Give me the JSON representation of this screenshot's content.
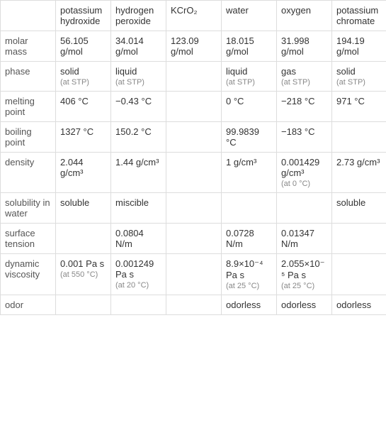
{
  "columns": [
    "",
    "potassium hydroxide",
    "hydrogen peroxide",
    "KCrO₂",
    "water",
    "oxygen",
    "potassium chromate"
  ],
  "rows": [
    {
      "label": "molar mass",
      "cells": [
        {
          "main": "56.105 g/mol"
        },
        {
          "main": "34.014 g/mol"
        },
        {
          "main": "123.09 g/mol"
        },
        {
          "main": "18.015 g/mol"
        },
        {
          "main": "31.998 g/mol"
        },
        {
          "main": "194.19 g/mol"
        }
      ]
    },
    {
      "label": "phase",
      "cells": [
        {
          "main": "solid",
          "note": "(at STP)"
        },
        {
          "main": "liquid",
          "note": "(at STP)"
        },
        {
          "main": ""
        },
        {
          "main": "liquid",
          "note": "(at STP)"
        },
        {
          "main": "gas",
          "note": "(at STP)"
        },
        {
          "main": "solid",
          "note": "(at STP)"
        }
      ]
    },
    {
      "label": "melting point",
      "cells": [
        {
          "main": "406 °C"
        },
        {
          "main": "−0.43 °C"
        },
        {
          "main": ""
        },
        {
          "main": "0 °C"
        },
        {
          "main": "−218 °C"
        },
        {
          "main": "971 °C"
        }
      ]
    },
    {
      "label": "boiling point",
      "cells": [
        {
          "main": "1327 °C"
        },
        {
          "main": "150.2 °C"
        },
        {
          "main": ""
        },
        {
          "main": "99.9839 °C"
        },
        {
          "main": "−183 °C"
        },
        {
          "main": ""
        }
      ]
    },
    {
      "label": "density",
      "cells": [
        {
          "main": "2.044 g/cm³"
        },
        {
          "main": "1.44 g/cm³"
        },
        {
          "main": ""
        },
        {
          "main": "1 g/cm³"
        },
        {
          "main": "0.001429 g/cm³",
          "note": "(at 0 °C)"
        },
        {
          "main": "2.73 g/cm³"
        }
      ]
    },
    {
      "label": "solubility in water",
      "cells": [
        {
          "main": "soluble"
        },
        {
          "main": "miscible"
        },
        {
          "main": ""
        },
        {
          "main": ""
        },
        {
          "main": ""
        },
        {
          "main": "soluble"
        }
      ]
    },
    {
      "label": "surface tension",
      "cells": [
        {
          "main": ""
        },
        {
          "main": "0.0804 N/m"
        },
        {
          "main": ""
        },
        {
          "main": "0.0728 N/m"
        },
        {
          "main": "0.01347 N/m"
        },
        {
          "main": ""
        }
      ]
    },
    {
      "label": "dynamic viscosity",
      "cells": [
        {
          "main": "0.001 Pa s",
          "note": "(at 550 °C)"
        },
        {
          "main": "0.001249 Pa s",
          "note": "(at 20 °C)"
        },
        {
          "main": ""
        },
        {
          "main": "8.9×10⁻⁴ Pa s",
          "note": "(at 25 °C)"
        },
        {
          "main": "2.055×10⁻⁵ Pa s",
          "note": "(at 25 °C)"
        },
        {
          "main": ""
        }
      ]
    },
    {
      "label": "odor",
      "cells": [
        {
          "main": ""
        },
        {
          "main": ""
        },
        {
          "main": ""
        },
        {
          "main": "odorless"
        },
        {
          "main": "odorless"
        },
        {
          "main": "odorless"
        }
      ]
    }
  ],
  "styling": {
    "border_color": "#dddddd",
    "text_color": "#333333",
    "note_color": "#888888",
    "background_color": "#ffffff",
    "main_fontsize": 13,
    "note_fontsize": 11,
    "cell_padding": 6
  }
}
